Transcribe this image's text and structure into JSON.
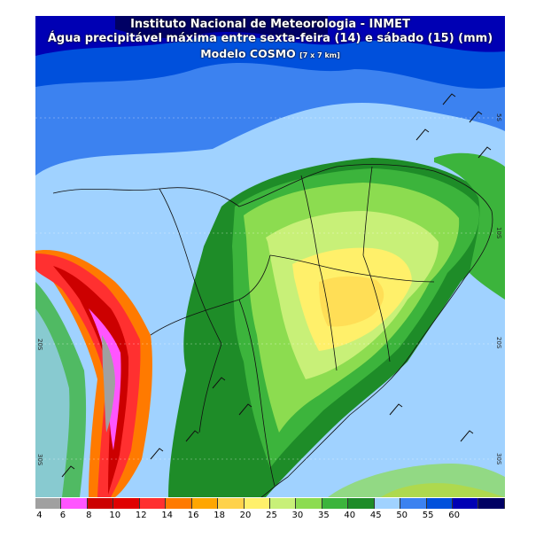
{
  "header": {
    "line1": "Instituto Nacional de Meteorologia - INMET",
    "line2": "Água precipitável máxima entre sexta-feira (14) e sábado (15) (mm)",
    "line3": "Modelo COSMO",
    "line3_small": "[7 x 7 km]"
  },
  "lat_labels": [
    "5S",
    "10S",
    "20S",
    "30S"
  ],
  "left_lat_labels": [
    "20S",
    "30S"
  ],
  "legend": {
    "values": [
      "4",
      "6",
      "8",
      "10",
      "12",
      "14",
      "16",
      "18",
      "20",
      "25",
      "30",
      "35",
      "40",
      "45",
      "50",
      "55",
      "60"
    ],
    "colors": [
      "#a0a0a0",
      "#ff55ff",
      "#cc0000",
      "#e00000",
      "#ff3030",
      "#ff7a00",
      "#ffa600",
      "#ffd24a",
      "#fff06a",
      "#c8f078",
      "#8cdc50",
      "#3cb43c",
      "#1e8c28",
      "#a0d2ff",
      "#3c82f0",
      "#0050dc",
      "#0000b4",
      "#000064"
    ]
  }
}
